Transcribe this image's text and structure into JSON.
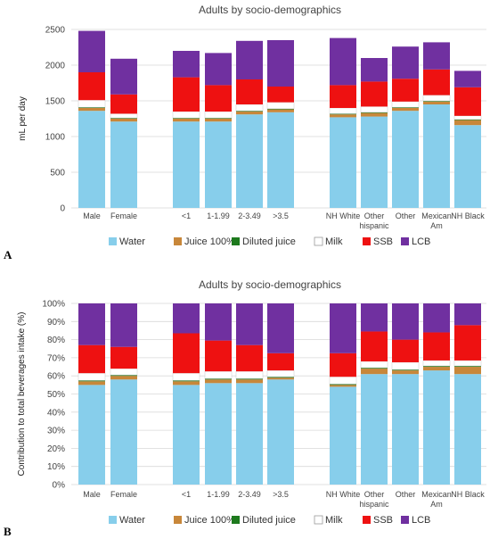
{
  "chart_data": [
    {
      "type": "bar",
      "stacked": true,
      "panel_label": "A",
      "title": "Adults by socio-demographics",
      "ylabel": "mL per day",
      "ylim": [
        0,
        2500
      ],
      "yticks": [
        "0",
        "500",
        "1000",
        "1500",
        "2000",
        "2500"
      ],
      "grid": true,
      "legend_position": "bottom",
      "categories": [
        [
          "Male"
        ],
        [
          "Female"
        ],
        [
          ""
        ],
        [
          "<1"
        ],
        [
          "1-1.99"
        ],
        [
          "2-3.49"
        ],
        [
          ">3.5"
        ],
        [
          ""
        ],
        [
          "NH White"
        ],
        [
          "Other",
          "hispanic"
        ],
        [
          "Other"
        ],
        [
          "Mexican",
          "Am"
        ],
        [
          "NH Black"
        ]
      ],
      "series": [
        {
          "name": "Water",
          "color": "#87CEEB",
          "values": [
            1360,
            1210,
            0,
            1210,
            1210,
            1310,
            1340,
            0,
            1270,
            1280,
            1360,
            1450,
            1160
          ]
        },
        {
          "name": "Juice 100%",
          "color": "#C8873A",
          "values": [
            40,
            40,
            0,
            40,
            40,
            40,
            40,
            0,
            40,
            50,
            40,
            40,
            70
          ]
        },
        {
          "name": "Diluted juice",
          "color": "#1E7A1E",
          "values": [
            10,
            10,
            0,
            10,
            10,
            10,
            10,
            0,
            10,
            10,
            10,
            10,
            10
          ]
        },
        {
          "name": "Milk",
          "color": "#FFFFFF",
          "values": [
            100,
            60,
            0,
            90,
            90,
            90,
            90,
            0,
            80,
            80,
            80,
            80,
            50
          ]
        },
        {
          "name": "SSB",
          "color": "#EE1111",
          "values": [
            390,
            270,
            0,
            480,
            370,
            350,
            220,
            0,
            320,
            350,
            320,
            360,
            400
          ]
        },
        {
          "name": "LCB",
          "color": "#7030A0",
          "values": [
            580,
            500,
            0,
            370,
            450,
            540,
            650,
            0,
            660,
            330,
            450,
            380,
            230
          ]
        }
      ]
    },
    {
      "type": "bar",
      "stacked": true,
      "panel_label": "B",
      "title": "Adults by socio-demographics",
      "ylabel": "Contribution to total beverages intake (%)",
      "ylim": [
        0,
        100
      ],
      "yticks": [
        "0%",
        "10%",
        "20%",
        "30%",
        "40%",
        "50%",
        "60%",
        "70%",
        "80%",
        "90%",
        "100%"
      ],
      "grid": true,
      "legend_position": "bottom",
      "categories": [
        [
          "Male"
        ],
        [
          "Female"
        ],
        [
          ""
        ],
        [
          "<1"
        ],
        [
          "1-1.99"
        ],
        [
          "2-3.49"
        ],
        [
          ">3.5"
        ],
        [
          ""
        ],
        [
          "NH White"
        ],
        [
          "Other",
          "hispanic"
        ],
        [
          "Other"
        ],
        [
          "Mexican",
          "Am"
        ],
        [
          "NH Black"
        ]
      ],
      "series": [
        {
          "name": "Water",
          "color": "#87CEEB",
          "values": [
            55,
            58,
            0,
            55,
            56,
            56,
            58,
            0,
            54,
            61,
            61,
            63,
            61
          ]
        },
        {
          "name": "Juice 100%",
          "color": "#C8873A",
          "values": [
            2,
            2,
            0,
            2,
            2,
            2,
            1,
            0,
            1,
            3,
            2,
            2,
            4
          ]
        },
        {
          "name": "Diluted juice",
          "color": "#1E7A1E",
          "values": [
            0.5,
            0.5,
            0,
            0.5,
            0.5,
            0.5,
            0.5,
            0,
            0.5,
            0.5,
            0.5,
            0.5,
            0.5
          ]
        },
        {
          "name": "Milk",
          "color": "#FFFFFF",
          "values": [
            4,
            3.5,
            0,
            4,
            4,
            4,
            3.5,
            0,
            4,
            3.5,
            4,
            3,
            3
          ]
        },
        {
          "name": "SSB",
          "color": "#EE1111",
          "values": [
            15.5,
            12,
            0,
            22,
            17,
            14.5,
            9.5,
            0,
            13,
            16.5,
            12.5,
            15.5,
            19.5
          ]
        },
        {
          "name": "LCB",
          "color": "#7030A0",
          "values": [
            23,
            24,
            0,
            16.5,
            20.5,
            23,
            27.5,
            0,
            27.5,
            15.5,
            20,
            16,
            12
          ]
        }
      ]
    }
  ]
}
